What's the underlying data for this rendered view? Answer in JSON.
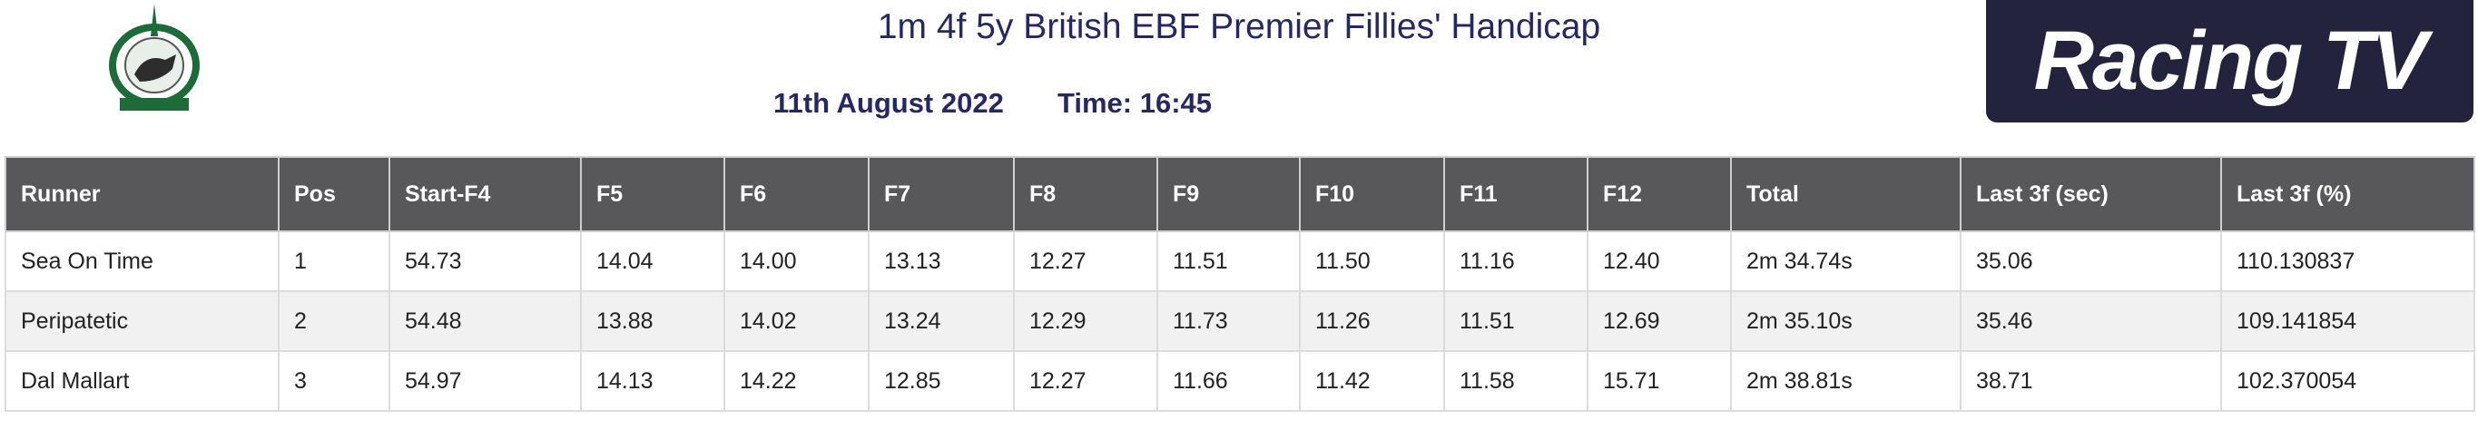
{
  "header": {
    "title": "1m 4f 5y British EBF Premier Fillies' Handicap",
    "date": "11th August 2022",
    "time": "Time: 16:45",
    "brand": "Racing TV"
  },
  "table": {
    "columns": [
      "Runner",
      "Pos",
      "Start-F4",
      "F5",
      "F6",
      "F7",
      "F8",
      "F9",
      "F10",
      "F11",
      "F12",
      "Total",
      "Last 3f (sec)",
      "Last 3f (%)"
    ],
    "rows": [
      [
        "Sea On Time",
        "1",
        "54.73",
        "14.04",
        "14.00",
        "13.13",
        "12.27",
        "11.51",
        "11.50",
        "11.16",
        "12.40",
        "2m 34.74s",
        "35.06",
        "110.130837"
      ],
      [
        "Peripatetic",
        "2",
        "54.48",
        "13.88",
        "14.02",
        "13.24",
        "12.29",
        "11.73",
        "11.26",
        "11.51",
        "12.69",
        "2m 35.10s",
        "35.46",
        "109.141854"
      ],
      [
        "Dal Mallart",
        "3",
        "54.97",
        "14.13",
        "14.22",
        "12.85",
        "12.27",
        "11.66",
        "11.42",
        "11.58",
        "15.71",
        "2m 38.81s",
        "38.71",
        "102.370054"
      ]
    ]
  }
}
